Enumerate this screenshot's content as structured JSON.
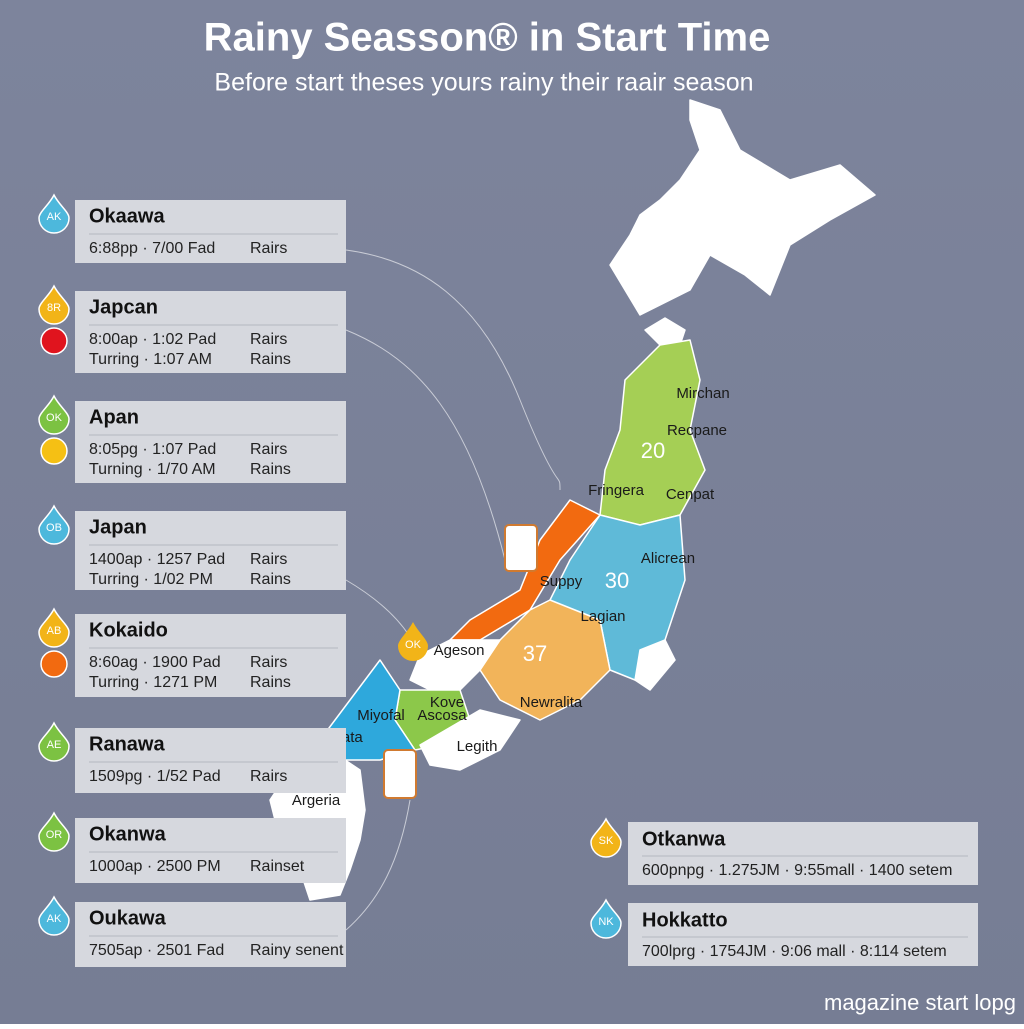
{
  "header": {
    "title": "Rainy Seasson® in Start Time",
    "subtitle": "Before start theses yours rainy their raair season"
  },
  "cards": [
    {
      "badge": "AK",
      "badge_color": "#4db8dc",
      "name": "Okaawa",
      "rows": [
        {
          "time": "6:88pp · 7/00 Fad",
          "label": "Rairs"
        }
      ]
    },
    {
      "badge": "8R",
      "badge_color": "#f2b418",
      "dot_color": "#e0141e",
      "name": "Japcan",
      "rows": [
        {
          "time": "8:00ap · 1:02 Pad",
          "label": "Rairs"
        },
        {
          "time": "Turring · 1:07 AM",
          "label": "Rains"
        }
      ]
    },
    {
      "badge": "OK",
      "badge_color": "#7cc242",
      "dot_color": "#f5c014",
      "name": "Apan",
      "rows": [
        {
          "time": "8:05pg · 1:07 Pad",
          "label": "Rairs"
        },
        {
          "time": "Turning · 1/70 AM",
          "label": "Rains"
        }
      ]
    },
    {
      "badge": "OB",
      "badge_color": "#4db8dc",
      "name": "Japan",
      "rows": [
        {
          "time": "1400ap · 1257 Pad",
          "label": "Rairs"
        },
        {
          "time": "Turring · 1/02 PM",
          "label": "Rains"
        }
      ]
    },
    {
      "badge": "AB",
      "badge_color": "#f2b418",
      "dot_color": "#f26a10",
      "name": "Kokaido",
      "rows": [
        {
          "time": "8:60ag · 1900 Pad",
          "label": "Rairs"
        },
        {
          "time": "Turring · 1271 PM",
          "label": "Rains"
        }
      ]
    },
    {
      "badge": "AE",
      "badge_color": "#7cc242",
      "name": "Ranawa",
      "rows": [
        {
          "time": "1509pg · 1/52 Pad",
          "label": "Rairs"
        }
      ]
    },
    {
      "badge": "OR",
      "badge_color": "#7cc242",
      "name": "Okanwa",
      "rows": [
        {
          "time": "1000ap · 2500 PM",
          "label": "Rainset"
        }
      ]
    },
    {
      "badge": "AK",
      "badge_color": "#4db8dc",
      "name": "Oukawa",
      "rows": [
        {
          "time": "7505ap · 2501 Fad",
          "label": "Rainy senent"
        }
      ]
    }
  ],
  "side_cards": [
    {
      "badge": "SK",
      "badge_color": "#f2b418",
      "name": "Otkanwa",
      "detail": "600pnpg · 1.275JM · 9:55mall · 1400 setem"
    },
    {
      "badge": "NK",
      "badge_color": "#4db8dc",
      "name": "Hokkatto",
      "detail": "700lprg · 1754JM · 9:06 mall · 8:114 setem"
    }
  ],
  "map": {
    "labels": [
      "Mirchan",
      "Recpane",
      "Fringera",
      "Cenpat",
      "Alicrean",
      "Suppy",
      "Lagian",
      "Ageson",
      "Newralita",
      "Miyofal",
      "Kove",
      "Ascosa",
      "Kepata",
      "Legith",
      "Argeria"
    ],
    "numbers": [
      20,
      30,
      37
    ],
    "badge": "OK"
  },
  "footer": "magazine start lopg"
}
